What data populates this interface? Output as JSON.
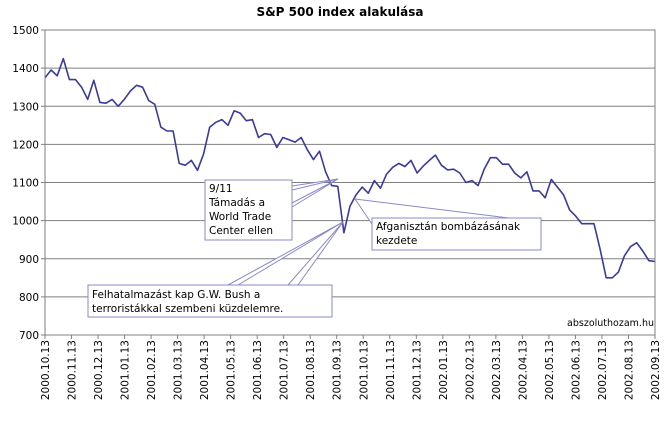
{
  "chart_data": {
    "type": "line",
    "title": "S&P 500 index alakulása",
    "xlabel": "",
    "ylabel": "",
    "ylim": [
      700,
      1500
    ],
    "yticks": [
      700,
      800,
      900,
      1000,
      1100,
      1200,
      1300,
      1400,
      1500
    ],
    "xticks": [
      "2000.10.13",
      "2000.11.13",
      "2000.12.13",
      "2001.01.13",
      "2001.02.13",
      "2001.03.13",
      "2001.04.13",
      "2001.05.13",
      "2001.06.13",
      "2001.07.13",
      "2001.08.13",
      "2001.09.13",
      "2001.10.13",
      "2001.11.13",
      "2001.12.13",
      "2002.01.13",
      "2002.02.13",
      "2002.03.13",
      "2002.04.13",
      "2002.05.13",
      "2002.06.13",
      "2002.07.13",
      "2002.08.13",
      "2002.09.13"
    ],
    "grid": true,
    "line_color": "#3a3a9c",
    "series": [
      {
        "values": [
          1375,
          1395,
          1380,
          1425,
          1370,
          1370,
          1350,
          1318,
          1368,
          1310,
          1308,
          1318,
          1300,
          1318,
          1340,
          1355,
          1350,
          1315,
          1305,
          1245,
          1235,
          1235,
          1150,
          1145,
          1158,
          1132,
          1175,
          1245,
          1258,
          1265,
          1250,
          1288,
          1282,
          1262,
          1265,
          1218,
          1228,
          1226,
          1192,
          1218,
          1212,
          1206,
          1218,
          1186,
          1160,
          1182,
          1128,
          1092,
          1090,
          968,
          1038,
          1068,
          1088,
          1072,
          1105,
          1085,
          1122,
          1140,
          1150,
          1142,
          1158,
          1125,
          1143,
          1158,
          1172,
          1145,
          1133,
          1135,
          1125,
          1100,
          1105,
          1092,
          1135,
          1165,
          1165,
          1148,
          1148,
          1125,
          1112,
          1128,
          1078,
          1078,
          1060,
          1108,
          1088,
          1068,
          1028,
          1012,
          992,
          992,
          992,
          925,
          850,
          850,
          865,
          908,
          932,
          942,
          920,
          895,
          893
        ]
      }
    ],
    "annotations": [
      {
        "id": "sept11",
        "lines": [
          "9/11",
          "Támadás a",
          "World Trade",
          "Center ellen"
        ]
      },
      {
        "id": "afganistan",
        "lines": [
          "Afganisztán bombázásának",
          "kezdete"
        ]
      },
      {
        "id": "felhatalmazas",
        "lines": [
          "Felhatalmazást kap G.W. Bush a",
          "terroristákkal szembeni küzdelemre."
        ]
      }
    ],
    "watermark": "abszoluthozam.hu"
  }
}
